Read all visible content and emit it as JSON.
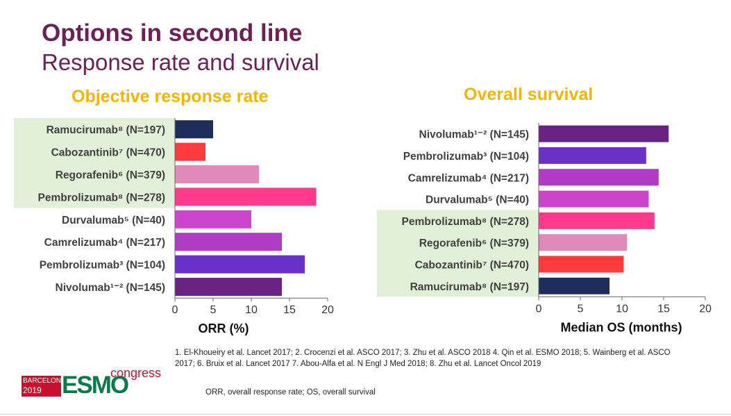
{
  "slide": {
    "title": "Options in second line",
    "subtitle": "Response rate and survival"
  },
  "colors": {
    "title": "#6b2058",
    "panel_title": "#f4b400",
    "highlight": "#e2efd9",
    "axis": "#666666",
    "label": "#404040"
  },
  "chart_data": [
    {
      "type": "bar",
      "orientation": "horizontal",
      "title": "Objective response rate",
      "xlabel": "ORR (%)",
      "xlim": [
        0,
        20
      ],
      "xticks": [
        0,
        5,
        10,
        15,
        20
      ],
      "grid": false,
      "categories": [
        "Ramucirumab⁸ (N=197)",
        "Cabozantinib⁷ (N=470)",
        "Regorafenib⁶ (N=379)",
        "Pembrolizumab⁸ (N=278)",
        "Durvalumab⁵ (N=40)",
        "Camrelizumab⁴ (N=217)",
        "Pembrolizumab³ (N=104)",
        "Nivolumab¹⁻² (N=145)"
      ],
      "values": [
        5,
        4,
        11,
        18.5,
        10,
        14,
        17,
        14
      ],
      "colors": [
        "#1f2d5c",
        "#ff3a3a",
        "#df8ab8",
        "#ff3a8c",
        "#cc44cc",
        "#b03cc6",
        "#6a30c8",
        "#6a2380"
      ],
      "highlighted": [
        true,
        true,
        true,
        true,
        false,
        false,
        false,
        false
      ]
    },
    {
      "type": "bar",
      "orientation": "horizontal",
      "title": "Overall survival",
      "xlabel": "Median OS (months)",
      "xlim": [
        0,
        20
      ],
      "xticks": [
        0,
        5,
        10,
        15,
        20
      ],
      "grid": false,
      "categories": [
        "Nivolumab¹⁻² (N=145)",
        "Pembrolizumab³ (N=104)",
        "Camrelizumab⁴ (N=217)",
        "Durvalumab⁵ (N=40)",
        "Pembrolizumab⁸ (N=278)",
        "Regorafenib⁶ (N=379)",
        "Cabozantinib⁷ (N=470)",
        "Ramucirumab⁸ (N=197)"
      ],
      "values": [
        15.6,
        12.9,
        14.4,
        13.2,
        13.9,
        10.6,
        10.2,
        8.5
      ],
      "colors": [
        "#6a2380",
        "#6a30c8",
        "#b03cc6",
        "#cc44cc",
        "#ff3a8c",
        "#df8ab8",
        "#ff3a3a",
        "#1f2d5c"
      ],
      "highlighted": [
        false,
        false,
        false,
        false,
        true,
        true,
        true,
        true
      ]
    }
  ],
  "footnote": "1. El-Khoueiry et al. Lancet 2017; 2. Crocenzi et al. ASCO 2017; 3. Zhu et al. ASCO 2018 4. Qin et al. ESMO 2018; 5. Wainberg et al. ASCO 2017; 6. Bruix et al. Lancet 2017 7. Abou-Alfa et al. N Engl J Med 2018; 8. Zhu et al. Lancet Oncol 2019",
  "abbreviations": "ORR, overall response rate; OS, overall survival",
  "logo": {
    "city": "BARCELONA",
    "year": "2019",
    "brand": "ESMO",
    "suffix": "congress"
  }
}
